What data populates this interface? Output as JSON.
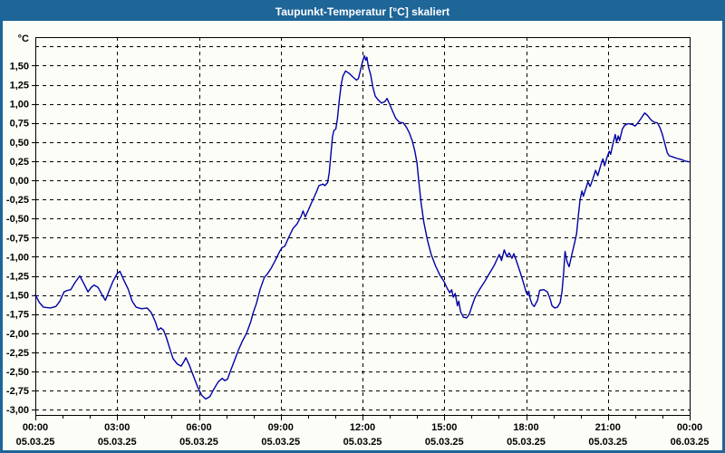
{
  "window": {
    "title": "Taupunkt-Temperatur [°C] skaliert"
  },
  "colors": {
    "frame": "#1E6598",
    "titlebar": "#1E6598",
    "title_text": "#FFFFFF",
    "plot_bg": "#FDFDF7",
    "curve": "#0000A8",
    "grid": "#000000",
    "axis": "#000000",
    "label": "#000000"
  },
  "chart_data": {
    "type": "line",
    "title": "Taupunkt-Temperatur [°C] skaliert",
    "ylabel": "°C",
    "y_unit_label": "°C",
    "ylim": [
      -3.0,
      1.85
    ],
    "x_hours_range": [
      0,
      24
    ],
    "grid": "dashed",
    "legend": "none",
    "y_ticks": [
      {
        "v": 1.5,
        "label": "1,50"
      },
      {
        "v": 1.25,
        "label": "1,25"
      },
      {
        "v": 1.0,
        "label": "1,00"
      },
      {
        "v": 0.75,
        "label": "0,75"
      },
      {
        "v": 0.5,
        "label": "0,50"
      },
      {
        "v": 0.25,
        "label": "0,25"
      },
      {
        "v": 0.0,
        "label": "0,00"
      },
      {
        "v": -0.25,
        "label": "-0,25"
      },
      {
        "v": -0.5,
        "label": "-0,50"
      },
      {
        "v": -0.75,
        "label": "-0,75"
      },
      {
        "v": -1.0,
        "label": "-1,00"
      },
      {
        "v": -1.25,
        "label": "-1,25"
      },
      {
        "v": -1.5,
        "label": "-1,50"
      },
      {
        "v": -1.75,
        "label": "-1,75"
      },
      {
        "v": -2.0,
        "label": "-2,00"
      },
      {
        "v": -2.25,
        "label": "-2,25"
      },
      {
        "v": -2.5,
        "label": "-2,50"
      },
      {
        "v": -2.75,
        "label": "-2,75"
      },
      {
        "v": -3.0,
        "label": "-3,00"
      }
    ],
    "y_gridlines_unlabeled": [
      1.75
    ],
    "x_ticks": [
      {
        "hour": 0,
        "time": "00:00",
        "date": "05.03.25"
      },
      {
        "hour": 3,
        "time": "03:00",
        "date": "05.03.25"
      },
      {
        "hour": 6,
        "time": "06:00",
        "date": "05.03.25"
      },
      {
        "hour": 9,
        "time": "09:00",
        "date": "05.03.25"
      },
      {
        "hour": 12,
        "time": "12:00",
        "date": "05.03.25"
      },
      {
        "hour": 15,
        "time": "15:00",
        "date": "05.03.25"
      },
      {
        "hour": 18,
        "time": "18:00",
        "date": "05.03.25"
      },
      {
        "hour": 21,
        "time": "21:00",
        "date": "05.03.25"
      },
      {
        "hour": 24,
        "time": "00:00",
        "date": "06.03.25"
      }
    ],
    "series": [
      {
        "name": "Taupunkt-Temperatur",
        "points": [
          [
            0,
            -1.5
          ],
          [
            0.15,
            -1.6
          ],
          [
            0.3,
            -1.66
          ],
          [
            0.55,
            -1.67
          ],
          [
            0.75,
            -1.65
          ],
          [
            0.9,
            -1.58
          ],
          [
            1.05,
            -1.46
          ],
          [
            1.18,
            -1.44
          ],
          [
            1.3,
            -1.43
          ],
          [
            1.45,
            -1.34
          ],
          [
            1.63,
            -1.25
          ],
          [
            1.78,
            -1.35
          ],
          [
            1.93,
            -1.46
          ],
          [
            2.05,
            -1.4
          ],
          [
            2.15,
            -1.37
          ],
          [
            2.3,
            -1.4
          ],
          [
            2.45,
            -1.5
          ],
          [
            2.57,
            -1.57
          ],
          [
            2.7,
            -1.45
          ],
          [
            2.85,
            -1.32
          ],
          [
            3.0,
            -1.22
          ],
          [
            3.1,
            -1.19
          ],
          [
            3.25,
            -1.31
          ],
          [
            3.4,
            -1.42
          ],
          [
            3.55,
            -1.58
          ],
          [
            3.7,
            -1.66
          ],
          [
            3.9,
            -1.68
          ],
          [
            4.1,
            -1.67
          ],
          [
            4.25,
            -1.73
          ],
          [
            4.4,
            -1.85
          ],
          [
            4.5,
            -1.96
          ],
          [
            4.6,
            -1.93
          ],
          [
            4.7,
            -1.96
          ],
          [
            4.8,
            -2.05
          ],
          [
            4.95,
            -2.22
          ],
          [
            5.05,
            -2.33
          ],
          [
            5.2,
            -2.4
          ],
          [
            5.35,
            -2.43
          ],
          [
            5.45,
            -2.37
          ],
          [
            5.52,
            -2.32
          ],
          [
            5.65,
            -2.42
          ],
          [
            5.8,
            -2.56
          ],
          [
            5.95,
            -2.7
          ],
          [
            6.1,
            -2.81
          ],
          [
            6.25,
            -2.86
          ],
          [
            6.4,
            -2.83
          ],
          [
            6.55,
            -2.73
          ],
          [
            6.7,
            -2.64
          ],
          [
            6.85,
            -2.59
          ],
          [
            6.95,
            -2.62
          ],
          [
            7.05,
            -2.6
          ],
          [
            7.15,
            -2.5
          ],
          [
            7.3,
            -2.36
          ],
          [
            7.45,
            -2.22
          ],
          [
            7.6,
            -2.1
          ],
          [
            7.75,
            -2.0
          ],
          [
            7.9,
            -1.85
          ],
          [
            8.0,
            -1.72
          ],
          [
            8.1,
            -1.62
          ],
          [
            8.25,
            -1.42
          ],
          [
            8.4,
            -1.27
          ],
          [
            8.5,
            -1.23
          ],
          [
            8.65,
            -1.15
          ],
          [
            8.8,
            -1.05
          ],
          [
            8.95,
            -0.94
          ],
          [
            9.05,
            -0.88
          ],
          [
            9.15,
            -0.86
          ],
          [
            9.3,
            -0.74
          ],
          [
            9.45,
            -0.63
          ],
          [
            9.6,
            -0.57
          ],
          [
            9.75,
            -0.47
          ],
          [
            9.82,
            -0.4
          ],
          [
            9.9,
            -0.48
          ],
          [
            10.0,
            -0.4
          ],
          [
            10.15,
            -0.28
          ],
          [
            10.3,
            -0.16
          ],
          [
            10.4,
            -0.07
          ],
          [
            10.55,
            -0.05
          ],
          [
            10.62,
            -0.07
          ],
          [
            10.72,
            -0.03
          ],
          [
            10.78,
            0.1
          ],
          [
            10.85,
            0.38
          ],
          [
            10.9,
            0.57
          ],
          [
            10.95,
            0.65
          ],
          [
            11.02,
            0.67
          ],
          [
            11.08,
            0.8
          ],
          [
            11.15,
            1.05
          ],
          [
            11.22,
            1.25
          ],
          [
            11.28,
            1.36
          ],
          [
            11.38,
            1.43
          ],
          [
            11.5,
            1.4
          ],
          [
            11.65,
            1.35
          ],
          [
            11.78,
            1.31
          ],
          [
            11.85,
            1.33
          ],
          [
            11.92,
            1.43
          ],
          [
            12.0,
            1.55
          ],
          [
            12.07,
            1.63
          ],
          [
            12.12,
            1.57
          ],
          [
            12.16,
            1.61
          ],
          [
            12.22,
            1.48
          ],
          [
            12.3,
            1.38
          ],
          [
            12.38,
            1.22
          ],
          [
            12.47,
            1.1
          ],
          [
            12.58,
            1.05
          ],
          [
            12.7,
            1.01
          ],
          [
            12.82,
            1.03
          ],
          [
            12.9,
            1.07
          ],
          [
            13.0,
            0.99
          ],
          [
            13.12,
            0.89
          ],
          [
            13.22,
            0.81
          ],
          [
            13.35,
            0.76
          ],
          [
            13.5,
            0.75
          ],
          [
            13.62,
            0.69
          ],
          [
            13.72,
            0.62
          ],
          [
            13.82,
            0.52
          ],
          [
            13.92,
            0.38
          ],
          [
            14.0,
            0.22
          ],
          [
            14.06,
            0.0
          ],
          [
            14.15,
            -0.3
          ],
          [
            14.25,
            -0.55
          ],
          [
            14.38,
            -0.78
          ],
          [
            14.52,
            -0.97
          ],
          [
            14.68,
            -1.12
          ],
          [
            14.84,
            -1.24
          ],
          [
            15.0,
            -1.33
          ],
          [
            15.1,
            -1.41
          ],
          [
            15.2,
            -1.47
          ],
          [
            15.27,
            -1.43
          ],
          [
            15.33,
            -1.53
          ],
          [
            15.4,
            -1.48
          ],
          [
            15.48,
            -1.64
          ],
          [
            15.53,
            -1.58
          ],
          [
            15.6,
            -1.72
          ],
          [
            15.7,
            -1.79
          ],
          [
            15.82,
            -1.8
          ],
          [
            15.92,
            -1.75
          ],
          [
            16.02,
            -1.64
          ],
          [
            16.12,
            -1.54
          ],
          [
            16.22,
            -1.47
          ],
          [
            16.34,
            -1.4
          ],
          [
            16.47,
            -1.33
          ],
          [
            16.6,
            -1.25
          ],
          [
            16.72,
            -1.18
          ],
          [
            16.85,
            -1.1
          ],
          [
            16.95,
            -1.02
          ],
          [
            17.02,
            -0.97
          ],
          [
            17.1,
            -1.05
          ],
          [
            17.2,
            -0.91
          ],
          [
            17.3,
            -1.0
          ],
          [
            17.38,
            -0.95
          ],
          [
            17.48,
            -1.02
          ],
          [
            17.55,
            -0.96
          ],
          [
            17.65,
            -1.06
          ],
          [
            17.8,
            -1.22
          ],
          [
            17.92,
            -1.36
          ],
          [
            18.0,
            -1.46
          ],
          [
            18.05,
            -1.5
          ],
          [
            18.1,
            -1.45
          ],
          [
            18.15,
            -1.55
          ],
          [
            18.22,
            -1.62
          ],
          [
            18.3,
            -1.65
          ],
          [
            18.42,
            -1.57
          ],
          [
            18.5,
            -1.44
          ],
          [
            18.65,
            -1.43
          ],
          [
            18.78,
            -1.46
          ],
          [
            18.88,
            -1.55
          ],
          [
            18.95,
            -1.64
          ],
          [
            19.05,
            -1.67
          ],
          [
            19.15,
            -1.66
          ],
          [
            19.25,
            -1.6
          ],
          [
            19.32,
            -1.45
          ],
          [
            19.38,
            -1.2
          ],
          [
            19.43,
            -0.93
          ],
          [
            19.5,
            -1.06
          ],
          [
            19.58,
            -1.13
          ],
          [
            19.68,
            -0.97
          ],
          [
            19.78,
            -0.82
          ],
          [
            19.85,
            -0.7
          ],
          [
            19.92,
            -0.45
          ],
          [
            19.98,
            -0.25
          ],
          [
            20.05,
            -0.14
          ],
          [
            20.1,
            -0.21
          ],
          [
            20.2,
            -0.1
          ],
          [
            20.27,
            -0.02
          ],
          [
            20.35,
            -0.08
          ],
          [
            20.45,
            0.02
          ],
          [
            20.55,
            0.13
          ],
          [
            20.63,
            0.06
          ],
          [
            20.75,
            0.21
          ],
          [
            20.82,
            0.28
          ],
          [
            20.88,
            0.19
          ],
          [
            20.97,
            0.3
          ],
          [
            21.05,
            0.38
          ],
          [
            21.1,
            0.34
          ],
          [
            21.2,
            0.5
          ],
          [
            21.27,
            0.6
          ],
          [
            21.32,
            0.5
          ],
          [
            21.38,
            0.58
          ],
          [
            21.43,
            0.52
          ],
          [
            21.53,
            0.67
          ],
          [
            21.62,
            0.72
          ],
          [
            21.75,
            0.74
          ],
          [
            21.9,
            0.73
          ],
          [
            22.0,
            0.71
          ],
          [
            22.08,
            0.74
          ],
          [
            22.2,
            0.8
          ],
          [
            22.35,
            0.88
          ],
          [
            22.45,
            0.85
          ],
          [
            22.58,
            0.79
          ],
          [
            22.7,
            0.76
          ],
          [
            22.82,
            0.75
          ],
          [
            22.92,
            0.68
          ],
          [
            23.0,
            0.6
          ],
          [
            23.06,
            0.52
          ],
          [
            23.12,
            0.44
          ],
          [
            23.18,
            0.36
          ],
          [
            23.25,
            0.32
          ],
          [
            23.35,
            0.31
          ],
          [
            23.5,
            0.29
          ],
          [
            23.7,
            0.27
          ],
          [
            23.85,
            0.25
          ],
          [
            24.0,
            0.24
          ]
        ]
      }
    ]
  }
}
